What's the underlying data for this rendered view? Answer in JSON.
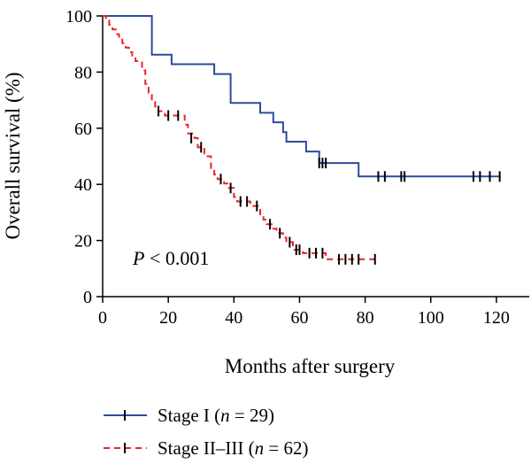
{
  "chart_data": {
    "type": "line",
    "subtype": "kaplan-meier step",
    "title": "",
    "xlabel": "Months after surgery",
    "ylabel": "Overall survival (%)",
    "xlim": [
      0,
      130
    ],
    "ylim": [
      0,
      100
    ],
    "xticks": [
      0,
      20,
      40,
      60,
      80,
      100,
      120
    ],
    "yticks": [
      0,
      20,
      40,
      60,
      80,
      100
    ],
    "annotation": {
      "p_symbol": "P",
      "p_rest": " < 0.001"
    },
    "legend": {
      "placement": "bottom",
      "entries": [
        {
          "prefix": "Stage I (",
          "n_symbol": "n",
          "suffix": " = 29)"
        },
        {
          "prefix": "Stage II–III (",
          "n_symbol": "n",
          "suffix": " = 62)"
        }
      ]
    },
    "series": [
      {
        "name": "Stage I (n = 29)",
        "color": "#2e4a9e",
        "dash": "solid",
        "steps": [
          [
            0,
            100
          ],
          [
            15,
            100
          ],
          [
            15,
            86.2
          ],
          [
            21,
            86.2
          ],
          [
            21,
            82.8
          ],
          [
            34,
            82.8
          ],
          [
            34,
            79.3
          ],
          [
            39,
            79.3
          ],
          [
            39,
            69.0
          ],
          [
            48,
            69.0
          ],
          [
            48,
            65.5
          ],
          [
            52,
            65.5
          ],
          [
            52,
            62.1
          ],
          [
            55,
            62.1
          ],
          [
            55,
            58.6
          ],
          [
            56,
            58.6
          ],
          [
            56,
            55.2
          ],
          [
            62,
            55.2
          ],
          [
            62,
            51.7
          ],
          [
            66,
            51.7
          ],
          [
            66,
            47.6
          ],
          [
            78,
            47.6
          ],
          [
            78,
            42.8
          ],
          [
            121,
            42.8
          ]
        ],
        "censors": [
          [
            66,
            47.6
          ],
          [
            67,
            47.6
          ],
          [
            68,
            47.6
          ],
          [
            84,
            42.8
          ],
          [
            86,
            42.8
          ],
          [
            91,
            42.8
          ],
          [
            92,
            42.8
          ],
          [
            113,
            42.8
          ],
          [
            115,
            42.8
          ],
          [
            118,
            42.8
          ],
          [
            121,
            42.8
          ]
        ]
      },
      {
        "name": "Stage II–III (n = 62)",
        "color": "#e8262b",
        "dash": "dashed",
        "steps": [
          [
            0,
            100
          ],
          [
            1,
            100
          ],
          [
            1,
            98.4
          ],
          [
            2,
            98.4
          ],
          [
            2,
            96.8
          ],
          [
            3,
            96.8
          ],
          [
            3,
            95.2
          ],
          [
            4,
            95.2
          ],
          [
            4,
            93.5
          ],
          [
            5,
            93.5
          ],
          [
            5,
            91.9
          ],
          [
            6,
            91.9
          ],
          [
            6,
            90.3
          ],
          [
            7,
            90.3
          ],
          [
            7,
            88.7
          ],
          [
            8,
            88.7
          ],
          [
            8,
            87.1
          ],
          [
            9,
            87.1
          ],
          [
            9,
            85.5
          ],
          [
            10,
            85.5
          ],
          [
            10,
            83.9
          ],
          [
            12,
            83.9
          ],
          [
            12,
            80.6
          ],
          [
            13,
            80.6
          ],
          [
            13,
            75.8
          ],
          [
            14,
            75.8
          ],
          [
            14,
            72.6
          ],
          [
            15,
            72.6
          ],
          [
            15,
            69.4
          ],
          [
            16,
            69.4
          ],
          [
            16,
            67.7
          ],
          [
            17,
            67.7
          ],
          [
            17,
            66.1
          ],
          [
            19,
            66.1
          ],
          [
            19,
            64.5
          ],
          [
            25,
            64.5
          ],
          [
            25,
            61.3
          ],
          [
            26,
            61.3
          ],
          [
            26,
            58.1
          ],
          [
            28,
            58.1
          ],
          [
            28,
            56.5
          ],
          [
            29,
            56.5
          ],
          [
            29,
            53.2
          ],
          [
            31,
            53.2
          ],
          [
            31,
            50.0
          ],
          [
            33,
            50.0
          ],
          [
            33,
            45.2
          ],
          [
            34,
            45.2
          ],
          [
            34,
            43.5
          ],
          [
            35,
            43.5
          ],
          [
            35,
            41.9
          ],
          [
            37,
            41.9
          ],
          [
            37,
            40.3
          ],
          [
            38,
            40.3
          ],
          [
            38,
            38.7
          ],
          [
            40,
            38.7
          ],
          [
            40,
            35.5
          ],
          [
            41,
            35.5
          ],
          [
            41,
            33.9
          ],
          [
            45,
            33.9
          ],
          [
            45,
            32.3
          ],
          [
            48,
            32.3
          ],
          [
            48,
            29.0
          ],
          [
            49,
            29.0
          ],
          [
            49,
            27.4
          ],
          [
            50,
            27.4
          ],
          [
            50,
            25.8
          ],
          [
            52,
            25.8
          ],
          [
            52,
            24.2
          ],
          [
            53,
            24.2
          ],
          [
            53,
            22.6
          ],
          [
            55,
            22.6
          ],
          [
            55,
            21.0
          ],
          [
            56,
            21.0
          ],
          [
            56,
            19.4
          ],
          [
            58,
            19.4
          ],
          [
            58,
            16.7
          ],
          [
            61,
            16.7
          ],
          [
            61,
            15.5
          ],
          [
            68,
            15.5
          ],
          [
            68,
            13.3
          ],
          [
            83,
            13.3
          ]
        ],
        "censors": [
          [
            17,
            66.1
          ],
          [
            20,
            64.5
          ],
          [
            23,
            64.5
          ],
          [
            27,
            56.5
          ],
          [
            30,
            53.2
          ],
          [
            36,
            41.9
          ],
          [
            39,
            38.7
          ],
          [
            42,
            33.9
          ],
          [
            44,
            33.9
          ],
          [
            47,
            32.3
          ],
          [
            51,
            25.8
          ],
          [
            54,
            22.6
          ],
          [
            57,
            19.4
          ],
          [
            59,
            16.7
          ],
          [
            60,
            16.7
          ],
          [
            63,
            15.5
          ],
          [
            65,
            15.5
          ],
          [
            67,
            15.5
          ],
          [
            72,
            13.3
          ],
          [
            74,
            13.3
          ],
          [
            76,
            13.3
          ],
          [
            78,
            13.3
          ],
          [
            83,
            13.3
          ]
        ]
      }
    ]
  }
}
